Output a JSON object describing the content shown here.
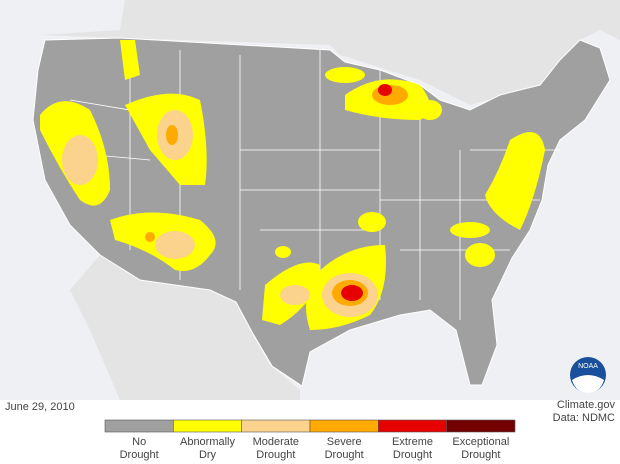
{
  "date": "June 29, 2010",
  "credit": "Climate.gov",
  "source": "Data: NDMC",
  "logo": "NOAA",
  "legend": [
    {
      "lines": [
        "No",
        "Drought"
      ],
      "color": "#a0a0a0"
    },
    {
      "lines": [
        "Abnormally",
        "Dry"
      ],
      "color": "#ffff00"
    },
    {
      "lines": [
        "Moderate",
        "Drought"
      ],
      "color": "#fcd38c"
    },
    {
      "lines": [
        "Severe",
        "Drought"
      ],
      "color": "#ffaa00"
    },
    {
      "lines": [
        "Extreme",
        "Drought"
      ],
      "color": "#e60000"
    },
    {
      "lines": [
        "Exceptional",
        "Drought"
      ],
      "color": "#730000"
    }
  ]
}
